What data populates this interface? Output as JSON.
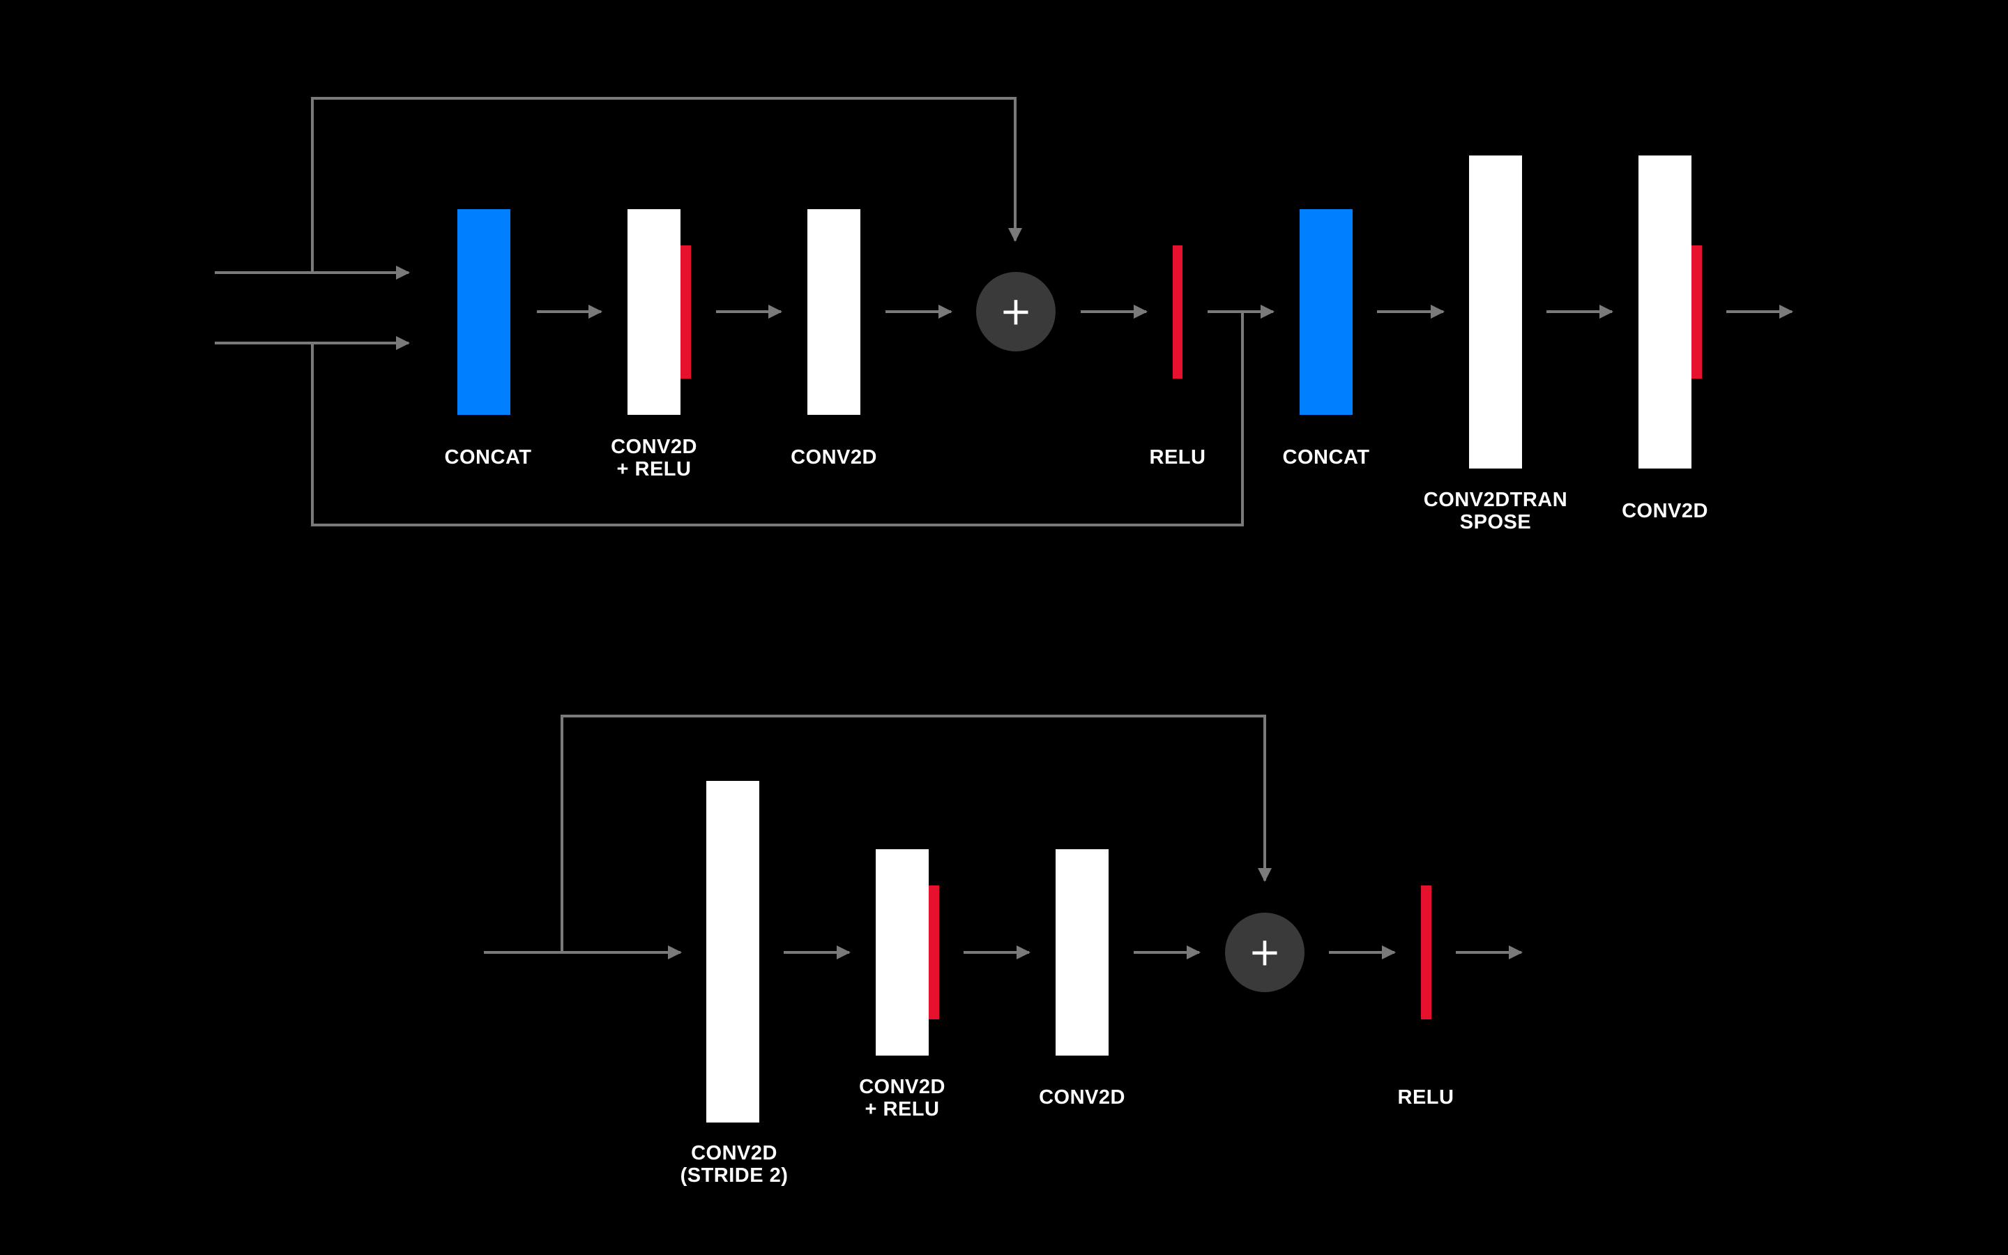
{
  "colors": {
    "background": "#000000",
    "layer": "#ffffff",
    "concat": "#0080ff",
    "relu": "#e8112d",
    "connector": "#7a7a7a",
    "add_node": "#3a3a3a"
  },
  "add_symbol": "+",
  "top_block": {
    "labels": {
      "concat_1": [
        "CONCAT"
      ],
      "conv_relu": [
        "CONV2D",
        "+ RELU"
      ],
      "conv2d_1": [
        "CONV2D"
      ],
      "relu": [
        "RELU"
      ],
      "concat_2": [
        "CONCAT"
      ],
      "conv_transpose": [
        "CONV2DTRAN",
        "SPOSE"
      ],
      "conv2d_2": [
        "CONV2D"
      ]
    }
  },
  "bottom_block": {
    "labels": {
      "conv_stride": [
        "CONV2D",
        "(STRIDE 2)"
      ],
      "conv_relu": [
        "CONV2D",
        "+ RELU"
      ],
      "conv2d": [
        "CONV2D"
      ],
      "relu": [
        "RELU"
      ]
    }
  }
}
